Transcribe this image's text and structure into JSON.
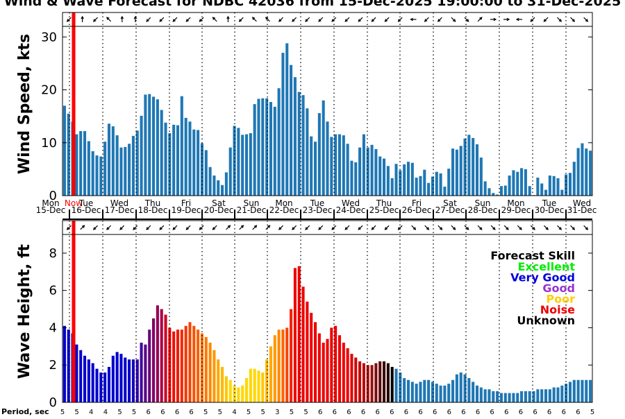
{
  "chart_data": [
    {
      "type": "bar",
      "title": "Wind & Wave Forecast for NDBC 42036 from 15-Dec-2025 19:00:00 to 31-Dec-2025",
      "ylabel": "Wind Speed, kts",
      "ylim": [
        0,
        32
      ],
      "yticks": [
        0,
        10,
        20,
        30
      ],
      "color": "#1f77b4",
      "now_label": "Now",
      "values": [
        17,
        15.5,
        14,
        11.6,
        12.2,
        12.2,
        10.3,
        8.4,
        7.6,
        7.4,
        10.2,
        13.6,
        13.1,
        11.4,
        9.1,
        9.2,
        9.8,
        11.3,
        12.3,
        15.1,
        19.1,
        19.2,
        18.7,
        18.2,
        16.2,
        13.8,
        11.8,
        13.4,
        13.3,
        18.8,
        14.7,
        14.0,
        12.5,
        12.4,
        9.9,
        8.6,
        5.4,
        3.8,
        2.9,
        2.0,
        4.4,
        9.1,
        13.2,
        12.8,
        11.5,
        11.6,
        11.8,
        17.3,
        18.3,
        18.4,
        18.4,
        17.7,
        16.8,
        20.3,
        27,
        28.8,
        24.7,
        22.4,
        19.6,
        19.0,
        16.5,
        11.2,
        10.2,
        15.6,
        18.0,
        14.0,
        11.1,
        11.6,
        11.6,
        11.4,
        9.8,
        6.6,
        6.3,
        9.1,
        11.6,
        9.1,
        9.6,
        8.8,
        7.4,
        7.0,
        5.6,
        3.3,
        6.0,
        4.8,
        5.9,
        6.4,
        6.2,
        3.4,
        3.7,
        4.9,
        2.4,
        3.6,
        4.5,
        4.2,
        1.7,
        5.1,
        8.9,
        8.7,
        9.4,
        10.8,
        11.5,
        10.9,
        9.7,
        7.2,
        2.7,
        1.4,
        0.5,
        0.2,
        1.8,
        1.9,
        3.8,
        4.8,
        4.5,
        5.2,
        5.0,
        1.8,
        0.1,
        3.4,
        2.3,
        1.1,
        3.8,
        3.7,
        3.3,
        1.1,
        4.0,
        4.3,
        6.4,
        9.0,
        9.9,
        8.9,
        8.5
      ]
    },
    {
      "type": "bar",
      "ylabel": "Wave Height, ft",
      "ylim": [
        0,
        9
      ],
      "yticks": [
        0,
        2,
        4,
        6,
        8
      ],
      "legend_title": "Forecast Skill",
      "legend": [
        {
          "label": "Excellent",
          "color": "#00ee00"
        },
        {
          "label": "Very Good",
          "color": "#0000dd"
        },
        {
          "label": "Good",
          "color": "#9933cc"
        },
        {
          "label": "Poor",
          "color": "#ffcc00"
        },
        {
          "label": "Noise",
          "color": "#ee0000"
        },
        {
          "label": "Unknown",
          "color": "#000000"
        }
      ],
      "values": [
        4.1,
        3.9,
        3.7,
        3.1,
        2.8,
        2.5,
        2.3,
        2.1,
        1.8,
        1.6,
        1.6,
        1.9,
        2.5,
        2.7,
        2.6,
        2.4,
        2.3,
        2.3,
        2.3,
        3.2,
        3.1,
        3.9,
        4.5,
        5.2,
        5.0,
        4.7,
        4.0,
        3.8,
        3.9,
        3.9,
        4.1,
        4.3,
        4.1,
        3.9,
        3.7,
        3.5,
        3.2,
        2.8,
        2.3,
        1.9,
        1.4,
        1.2,
        0.9,
        0.8,
        0.9,
        1.3,
        1.8,
        1.8,
        1.7,
        1.6,
        2.3,
        3.0,
        3.6,
        3.9,
        3.9,
        4.0,
        5.0,
        7.2,
        7.3,
        6.2,
        5.4,
        4.8,
        4.3,
        3.7,
        3.2,
        3.4,
        4.0,
        4.1,
        3.6,
        3.2,
        2.9,
        2.6,
        2.4,
        2.2,
        2.1,
        2.0,
        2.0,
        2.1,
        2.2,
        2.2,
        2.1,
        1.9,
        1.8,
        1.6,
        1.3,
        1.2,
        1.1,
        1.0,
        1.1,
        1.2,
        1.2,
        1.1,
        1.0,
        0.9,
        0.9,
        1.0,
        1.2,
        1.5,
        1.6,
        1.5,
        1.3,
        1.1,
        0.9,
        0.8,
        0.7,
        0.7,
        0.6,
        0.6,
        0.5,
        0.5,
        0.5,
        0.5,
        0.5,
        0.6,
        0.6,
        0.6,
        0.6,
        0.7,
        0.7,
        0.7,
        0.7,
        0.8,
        0.8,
        0.9,
        1.0,
        1.1,
        1.2,
        1.2,
        1.2,
        1.2,
        1.2
      ],
      "color_stops": [
        {
          "i": 0,
          "color": "#0000cc"
        },
        {
          "i": 16,
          "color": "#0000cc"
        },
        {
          "i": 24,
          "color": "#aa0044"
        },
        {
          "i": 26,
          "color": "#ee0000"
        },
        {
          "i": 36,
          "color": "#ff8800"
        },
        {
          "i": 41,
          "color": "#ffd700"
        },
        {
          "i": 48,
          "color": "#ffd700"
        },
        {
          "i": 53,
          "color": "#ff8800"
        },
        {
          "i": 57,
          "color": "#ee0000"
        },
        {
          "i": 70,
          "color": "#ee0000"
        },
        {
          "i": 76,
          "color": "#991111"
        },
        {
          "i": 81,
          "color": "#000000"
        },
        {
          "i": 82,
          "color": "#1f77b4"
        },
        {
          "i": 131,
          "color": "#1f77b4"
        }
      ]
    }
  ],
  "day_labels": [
    {
      "day": "Mon",
      "date": "15-Dec"
    },
    {
      "day": "Tue",
      "date": "16-Dec"
    },
    {
      "day": "Wed",
      "date": "17-Dec"
    },
    {
      "day": "Thu",
      "date": "18-Dec"
    },
    {
      "day": "Fri",
      "date": "19-Dec"
    },
    {
      "day": "Sat",
      "date": "20-Dec"
    },
    {
      "day": "Sun",
      "date": "21-Dec"
    },
    {
      "day": "Mon",
      "date": "22-Dec"
    },
    {
      "day": "Tue",
      "date": "23-Dec"
    },
    {
      "day": "Wed",
      "date": "24-Dec"
    },
    {
      "day": "Thu",
      "date": "25-Dec"
    },
    {
      "day": "Fri",
      "date": "26-Dec"
    },
    {
      "day": "Sat",
      "date": "27-Dec"
    },
    {
      "day": "Sun",
      "date": "28-Dec"
    },
    {
      "day": "Mon",
      "date": "29-Dec"
    },
    {
      "day": "Tue",
      "date": "30-Dec"
    },
    {
      "day": "Wed",
      "date": "31-Dec"
    }
  ],
  "period_label": "Period, sec",
  "periods": [
    "5",
    "5",
    "4",
    "4",
    "5",
    "5",
    "6",
    "6",
    "6",
    "6",
    "5",
    "5",
    "4",
    "5",
    "5",
    "3",
    "5",
    "5",
    "6",
    "6",
    "6",
    "6",
    "6",
    "6",
    "6",
    "6",
    "6",
    "6",
    "6",
    "6",
    "6",
    "6",
    "6",
    "6",
    "6",
    "6",
    "6",
    "5"
  ],
  "wind_direction_angles_deg": [
    225,
    90,
    225,
    135,
    90,
    90,
    225,
    225,
    225,
    225,
    225,
    135,
    90,
    225,
    135,
    135,
    225,
    225,
    225,
    225,
    225,
    225,
    225,
    225,
    225,
    225,
    180,
    225,
    225,
    315,
    315,
    45,
    0,
    0,
    180,
    225,
    225,
    315,
    315,
    315
  ],
  "wave_direction_angles_deg": [
    225,
    45,
    225,
    225,
    225,
    225,
    225,
    225,
    225,
    225,
    225,
    225,
    45,
    45,
    45,
    45,
    225,
    225,
    225,
    225,
    225,
    225,
    225,
    225,
    225,
    225,
    315,
    315,
    315,
    315,
    315,
    315,
    315,
    315,
    315,
    315,
    315,
    315,
    315,
    315
  ]
}
